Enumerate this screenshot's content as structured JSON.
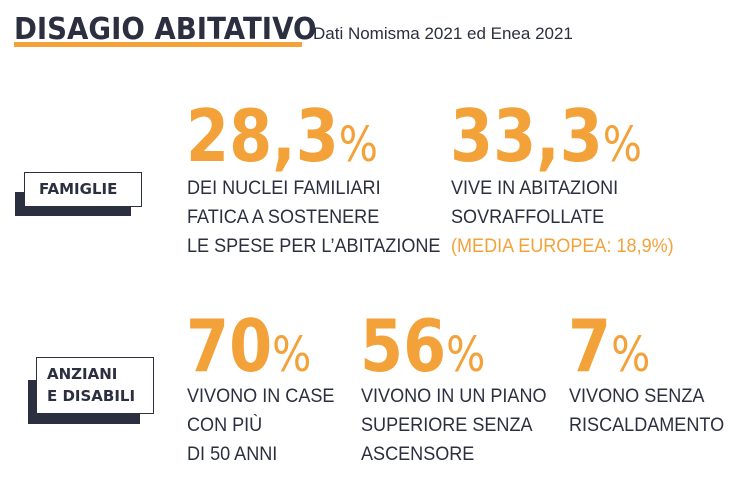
{
  "header": {
    "title": "DISAGIO ABITATIVO",
    "subtitle": "Dati Nomisma 2021 ed Enea 2021"
  },
  "categories": {
    "famiglie": "FAMIGLIE",
    "anziani_line1": "ANZIANI",
    "anziani_line2": "E DISABILI"
  },
  "stats": [
    {
      "value": "28,3",
      "unit": "%",
      "lines": [
        "DEI NUCLEI FAMILIARI",
        "FATICA A SOSTENERE",
        "LE SPESE PER L’ABITAZIONE"
      ]
    },
    {
      "value": "33,3",
      "unit": "%",
      "lines": [
        "VIVE IN ABITAZIONI",
        "SOVRAFFOLLATE"
      ],
      "note": "(MEDIA EUROPEA: 18,9%)"
    },
    {
      "value": "70",
      "unit": "%",
      "lines": [
        "VIVONO IN CASE",
        "CON PIÙ",
        "DI 50 ANNI"
      ]
    },
    {
      "value": "56",
      "unit": "%",
      "lines": [
        "VIVONO IN UN PIANO",
        "SUPERIORE SENZA",
        "ASCENSORE"
      ]
    },
    {
      "value": "7",
      "unit": "%",
      "lines": [
        "VIVONO SENZA",
        "RISCALDAMENTO"
      ]
    }
  ],
  "colors": {
    "accent": "#f3a23a",
    "dark": "#2b2f3f"
  }
}
